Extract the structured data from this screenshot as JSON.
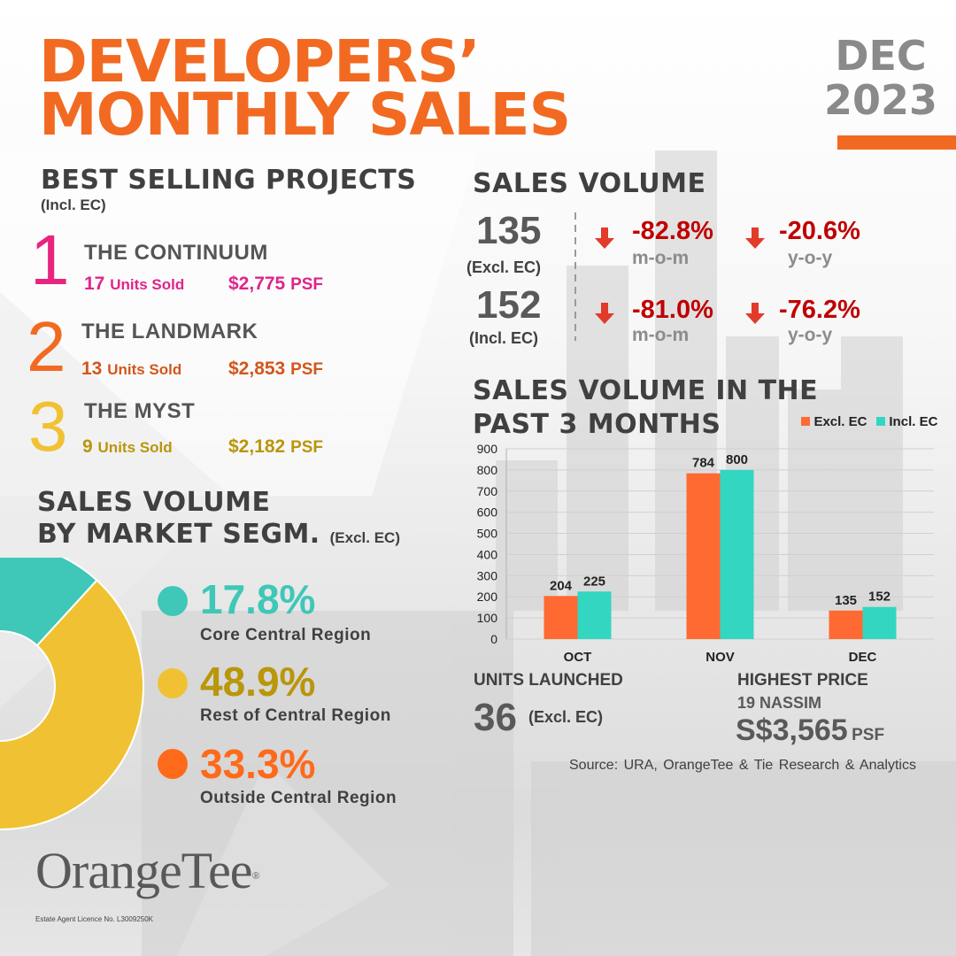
{
  "header": {
    "title_line1": "DEVELOPERS’",
    "title_line2": "MONTHLY SALES",
    "month": "DEC",
    "year": "2023"
  },
  "colors": {
    "brand_orange": "#f26a21",
    "rank1": "#e8247f",
    "rank2": "#f26a21",
    "rank3": "#f0c233",
    "project1_text": "#e0248a",
    "project2_text": "#d3561b",
    "project3_text": "#b9960a",
    "decline_red": "#c00000",
    "series_excl": "#ff6a33",
    "series_incl": "#33d6c1",
    "ccr": "#3fc7b8",
    "rcr": "#f0c233",
    "ocr": "#ff6a1a"
  },
  "best_selling": {
    "heading": "BEST SELLING PROJECTS",
    "subheading": "(Incl. EC)",
    "projects": [
      {
        "rank": "1",
        "name": "THE CONTINUUM",
        "units_value": "17",
        "units_label": "Units Sold",
        "psf_value": "$2,775",
        "psf_label": "PSF"
      },
      {
        "rank": "2",
        "name": "THE LANDMARK",
        "units_value": "13",
        "units_label": "Units Sold",
        "psf_value": "$2,853",
        "psf_label": "PSF"
      },
      {
        "rank": "3",
        "name": "THE MYST",
        "units_value": "9",
        "units_label": "Units Sold",
        "psf_value": "$2,182",
        "psf_label": "PSF"
      }
    ]
  },
  "sales_volume": {
    "heading": "SALES VOLUME",
    "rows": [
      {
        "value": "135",
        "label": "(Excl. EC)",
        "mom": "-82.8%",
        "mom_label": "m-o-m",
        "yoy": "-20.6%",
        "yoy_label": "y-o-y"
      },
      {
        "value": "152",
        "label": "(Incl. EC)",
        "mom": "-81.0%",
        "mom_label": "m-o-m",
        "yoy": "-76.2%",
        "yoy_label": "y-o-y"
      }
    ]
  },
  "segments": {
    "heading_line1": "SALES VOLUME",
    "heading_line2": "BY MARKET SEGM.",
    "heading_note": "(Excl. EC)",
    "items": [
      {
        "pct": "17.8%",
        "label": "Core Central Region"
      },
      {
        "pct": "48.9%",
        "label": "Rest of Central Region"
      },
      {
        "pct": "33.3%",
        "label": "Outside Central Region"
      }
    ]
  },
  "past3": {
    "heading_line1": "SALES VOLUME IN THE",
    "heading_line2": "PAST 3 MONTHS"
  },
  "units_launched": {
    "heading": "UNITS LAUNCHED",
    "value": "36",
    "note": "(Excl. EC)"
  },
  "highest_price": {
    "heading": "HIGHEST PRICE",
    "project": "19 NASSIM",
    "value": "S$3,565",
    "unit": "PSF"
  },
  "source": "Source: URA, OrangeTee & Tie Research & Analytics",
  "logo": {
    "text": "OrangeTee",
    "licence": "Estate Agent Licence No. L3009250K"
  },
  "chart_data": [
    {
      "type": "bar",
      "title": "SALES VOLUME IN THE PAST 3 MONTHS",
      "categories": [
        "OCT",
        "NOV",
        "DEC"
      ],
      "series": [
        {
          "name": "Excl. EC",
          "values": [
            204,
            784,
            135
          ],
          "color": "#ff6a33"
        },
        {
          "name": "Incl. EC",
          "values": [
            225,
            800,
            152
          ],
          "color": "#33d6c1"
        }
      ],
      "ylim": [
        0,
        900
      ],
      "yticks": [
        0,
        100,
        200,
        300,
        400,
        500,
        600,
        700,
        800,
        900
      ],
      "grid": true,
      "legend": "top-right"
    },
    {
      "type": "pie",
      "title": "SALES VOLUME BY MARKET SEGM. (Excl. EC)",
      "donut": true,
      "slices": [
        {
          "label": "Core Central Region",
          "value": 17.8,
          "color": "#3fc7b8"
        },
        {
          "label": "Rest of Central Region",
          "value": 48.9,
          "color": "#f0c233"
        },
        {
          "label": "Outside Central Region",
          "value": 33.3,
          "color": "#ff6a1a"
        }
      ]
    }
  ]
}
